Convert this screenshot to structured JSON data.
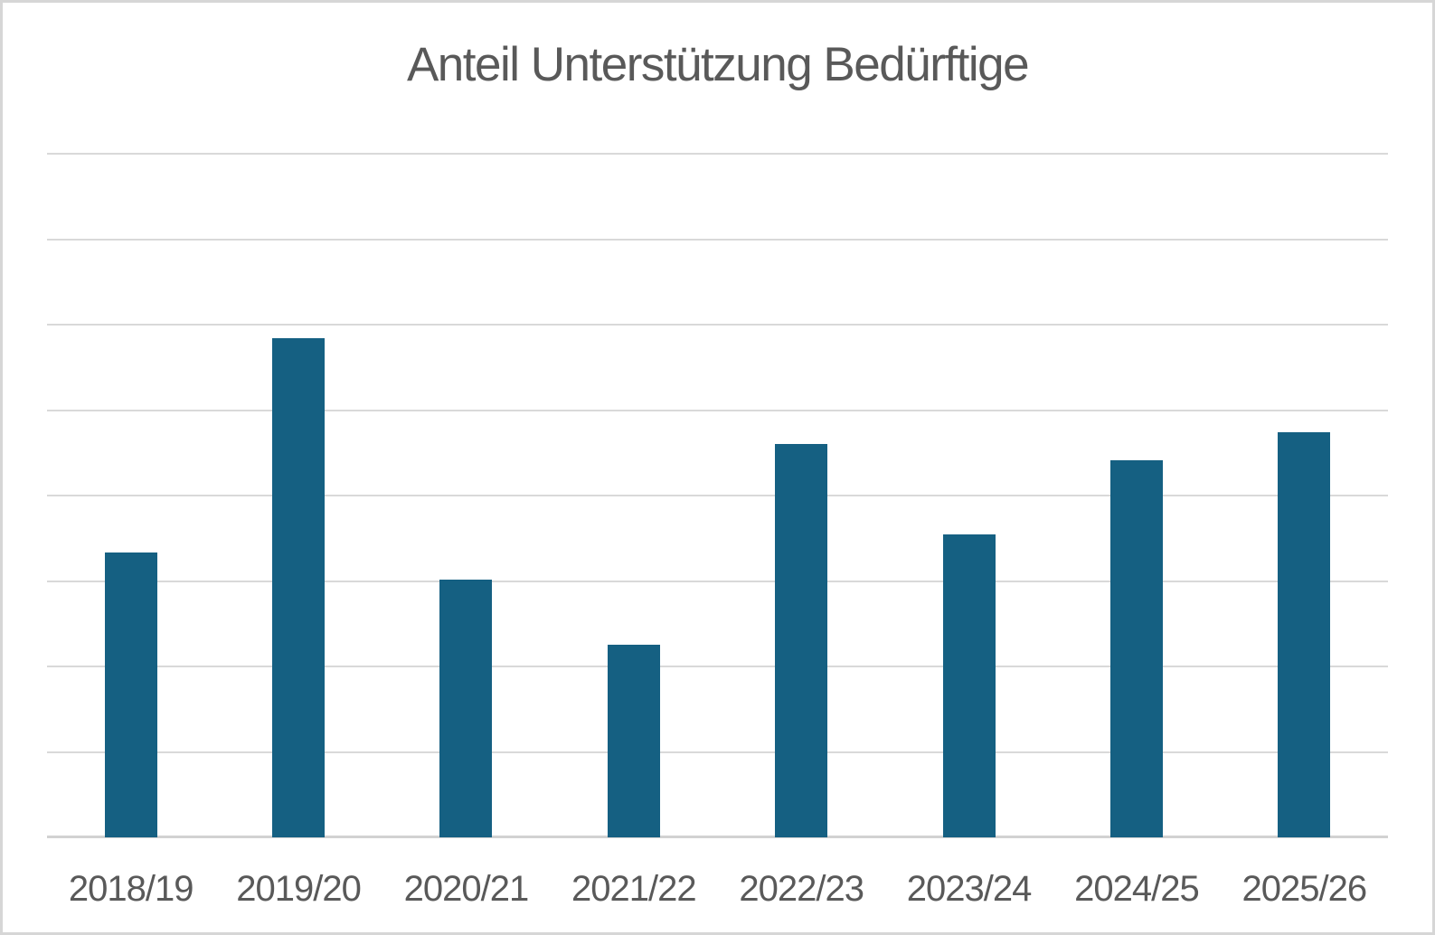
{
  "chart_data": {
    "type": "bar",
    "title": "Anteil Unterstützung Bedürftige",
    "categories": [
      "2018/19",
      "2019/20",
      "2020/21",
      "2021/22",
      "2022/23",
      "2023/24",
      "2024/25",
      "2025/26"
    ],
    "values": [
      3.33,
      5.84,
      3.02,
      2.25,
      4.6,
      3.55,
      4.41,
      4.74
    ],
    "xlabel": "",
    "ylabel": "",
    "ylim": [
      0,
      8
    ],
    "gridline_step": 1,
    "grid": "horizontal",
    "y_axis_tick_labels_visible": false,
    "legend_position": "none",
    "colors": {
      "bar": "#156082",
      "gridline": "#d9d9d9",
      "axis_line": "#d2d2d2",
      "text": "#595959",
      "background": "#ffffff",
      "outer_border": "#d6d6d6"
    }
  }
}
